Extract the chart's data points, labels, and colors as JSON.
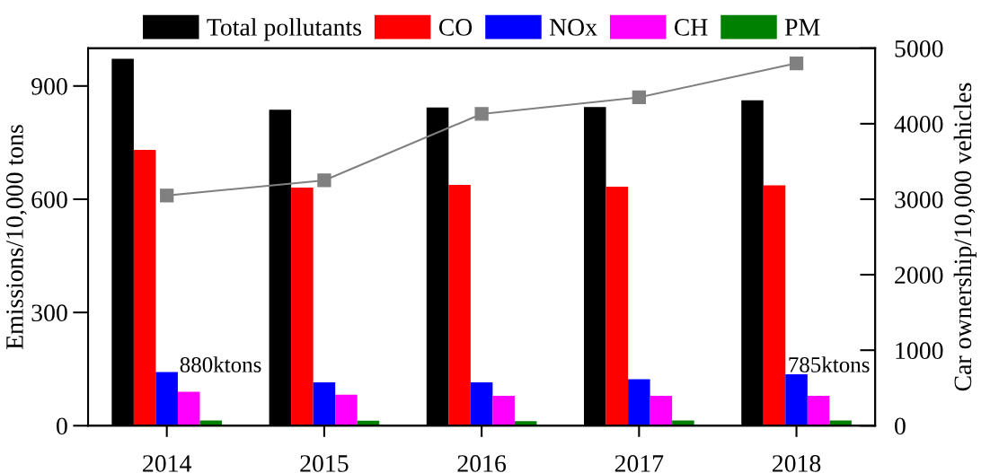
{
  "chart_data": {
    "type": "bar",
    "categories": [
      "2014",
      "2015",
      "2016",
      "2017",
      "2018"
    ],
    "series": [
      {
        "name": "Total pollutants",
        "color": "#000000",
        "values": [
          972,
          837,
          843,
          844,
          862
        ]
      },
      {
        "name": "CO",
        "color": "#ff0000",
        "values": [
          731,
          631,
          638,
          633,
          637
        ]
      },
      {
        "name": "NOx",
        "color": "#0000ff",
        "values": [
          142,
          115,
          115,
          123,
          136
        ]
      },
      {
        "name": "CH",
        "color": "#ff00ff",
        "values": [
          90,
          82,
          79,
          79,
          79
        ]
      },
      {
        "name": "PM",
        "color": "#008000",
        "values": [
          14,
          13,
          12,
          14,
          14
        ]
      },
      {
        "type": "line",
        "axis": "y2",
        "color": "#808080",
        "values": [
          3050,
          3250,
          4130,
          4350,
          4800
        ]
      }
    ],
    "ylabel": "Emissions/10,000 tons",
    "y2label": "Car ownership/10,000 vehicles",
    "ylim": [
      0,
      1000
    ],
    "yticks": [
      0,
      300,
      600,
      900
    ],
    "y2lim": [
      0,
      5000
    ],
    "y2ticks": [
      0,
      1000,
      2000,
      3000,
      4000,
      5000
    ],
    "marker": "square",
    "line_style": "solid",
    "legend": "top",
    "annotations": [
      {
        "text": "880ktons",
        "x": "2014",
        "y": 142
      },
      {
        "text": "785ktons",
        "x": "2018",
        "y": 142
      }
    ]
  }
}
